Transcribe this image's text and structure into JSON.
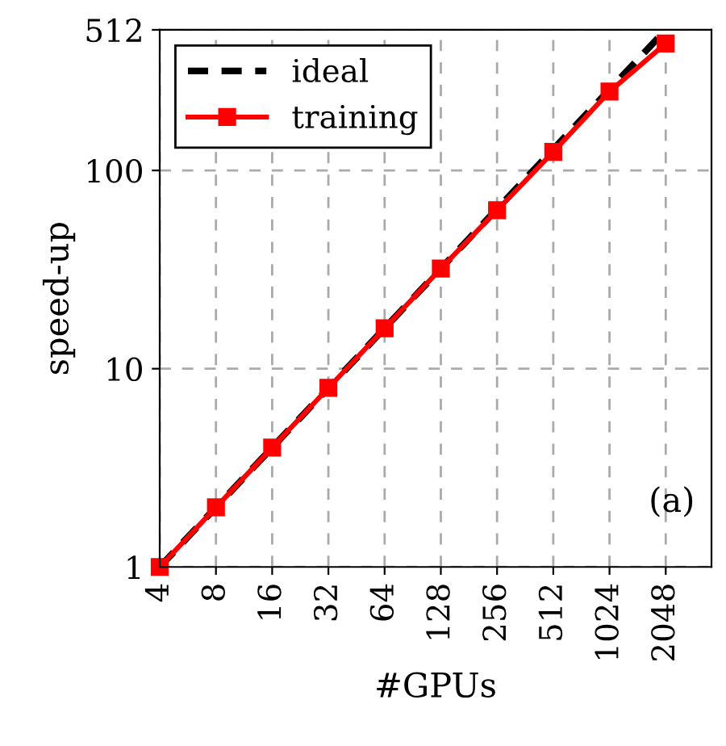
{
  "chart_data": {
    "type": "line",
    "xlabel": "#GPUs",
    "ylabel": "speed-up",
    "annotations": [
      "(a)"
    ],
    "x": [
      4,
      8,
      16,
      32,
      64,
      128,
      256,
      512,
      1024,
      2048
    ],
    "series": [
      {
        "name": "ideal",
        "color": "#000000",
        "line_style": "dashed",
        "marker": "none",
        "values": [
          1,
          2,
          4,
          8,
          16,
          32,
          64,
          128,
          256,
          512
        ]
      },
      {
        "name": "training",
        "color": "#ff0000",
        "line_style": "solid",
        "marker": "square",
        "values": [
          1,
          2,
          4,
          8,
          16,
          32,
          63,
          124,
          250,
          437
        ]
      }
    ],
    "log": "xy",
    "xlim": [
      4,
      3600
    ],
    "ylim": [
      1,
      512
    ],
    "xticks": [
      4,
      8,
      16,
      32,
      64,
      128,
      256,
      512,
      1024,
      2048
    ],
    "yticks": [
      1,
      10,
      100,
      512
    ],
    "grid": true,
    "legend": "top left"
  }
}
